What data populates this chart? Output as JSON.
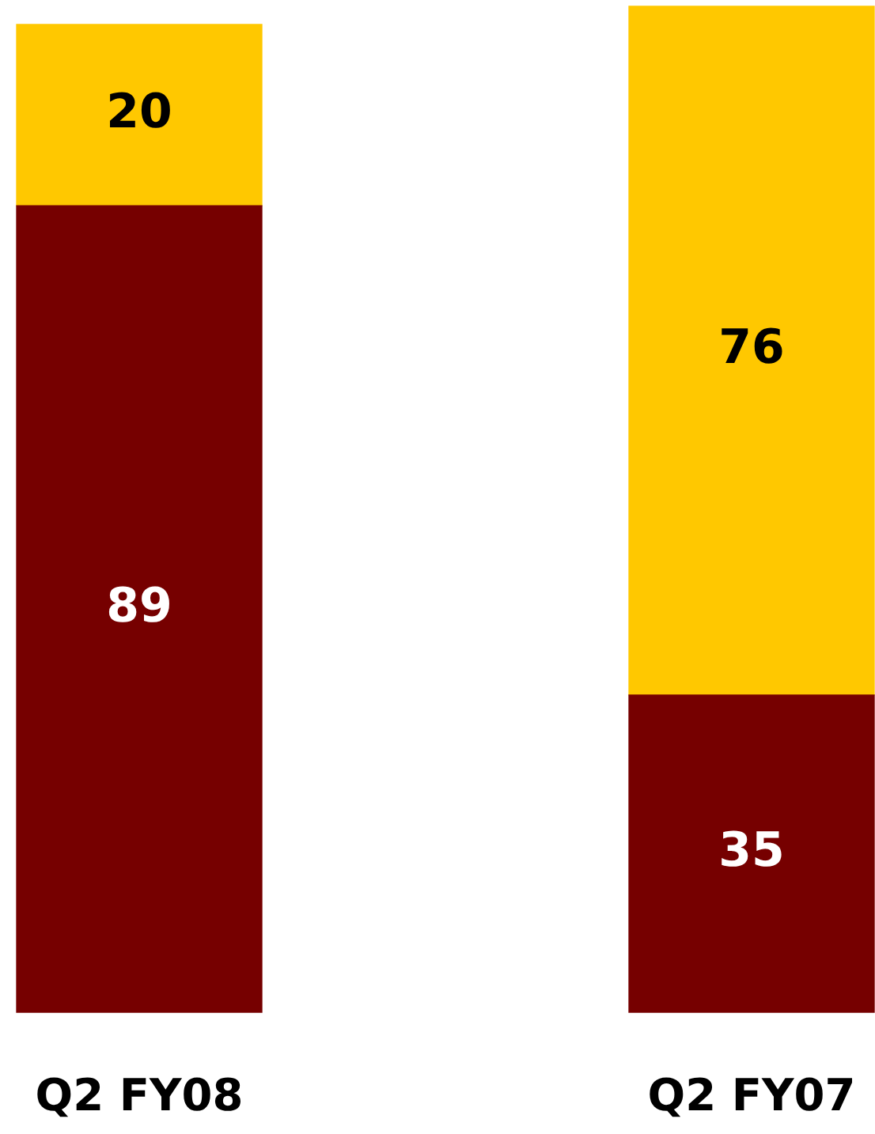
{
  "chart_data": {
    "type": "bar",
    "stacked": true,
    "data_labels": true,
    "categories": [
      "Q2 FY08",
      "Q2 FY07"
    ],
    "series": [
      {
        "color": "#760000",
        "values": [
          89,
          35
        ]
      },
      {
        "color": "#ffc800",
        "values": [
          20,
          76
        ]
      }
    ]
  }
}
